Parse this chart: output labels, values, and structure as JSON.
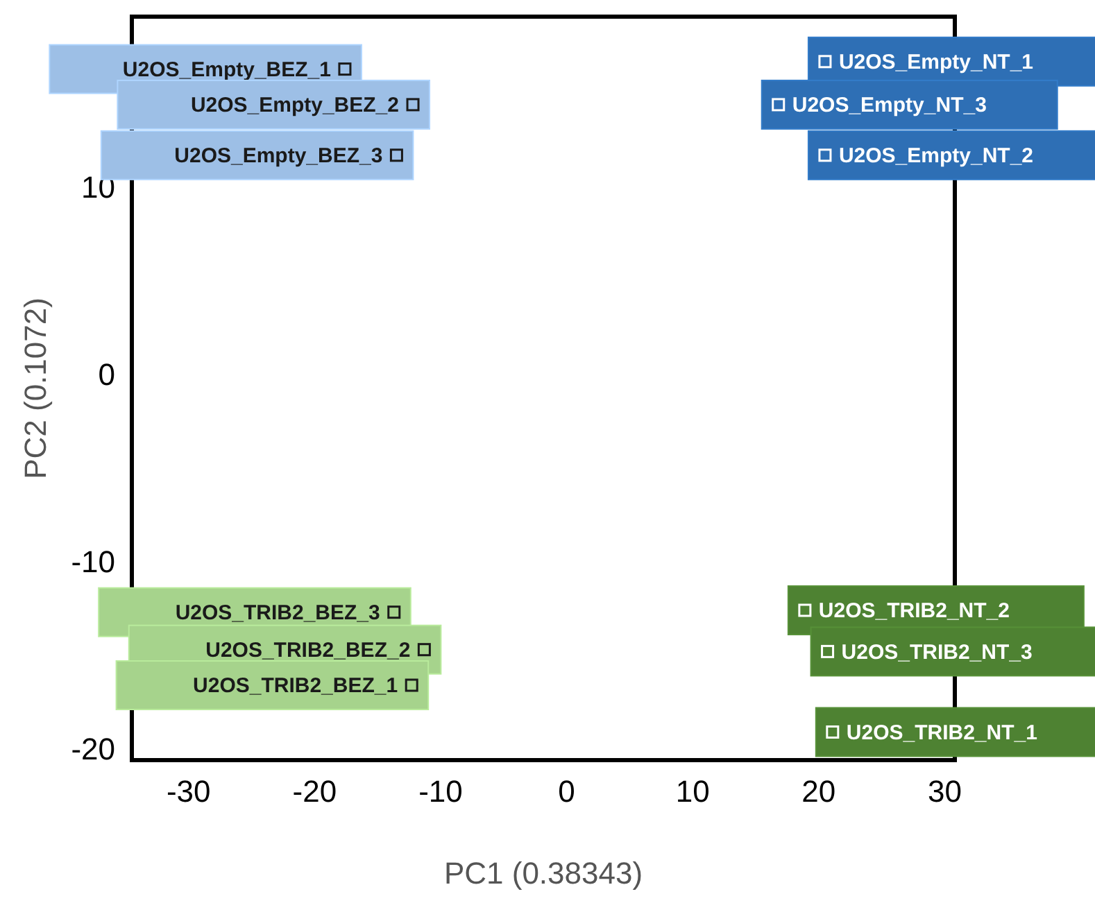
{
  "chart_data": {
    "type": "scatter",
    "xlabel": "PC1 (0.38343)",
    "ylabel": "PC2 (0.1072)",
    "xlim": [
      -34.5,
      30.8
    ],
    "ylim": [
      -20.6,
      19.1
    ],
    "xticks": [
      -30,
      -20,
      -10,
      0,
      10,
      20,
      30
    ],
    "yticks": [
      -20,
      -10,
      0,
      10
    ],
    "grid": false,
    "marker": "square",
    "series": [
      {
        "color": "#9dbfe6",
        "x": [
          -17.6,
          -12.2,
          -13.5
        ],
        "values": [
          16.3,
          14.4,
          11.7
        ],
        "value_labels": [
          "U2OS_Empty_BEZ_1",
          "U2OS_Empty_BEZ_2",
          "U2OS_Empty_BEZ_3"
        ]
      },
      {
        "color": "#2e6fb5",
        "x": [
          20.5,
          16.8,
          20.5
        ],
        "values": [
          16.7,
          14.4,
          11.7
        ],
        "value_labels": [
          "U2OS_Empty_NT_1",
          "U2OS_Empty_NT_3",
          "U2OS_Empty_NT_2"
        ]
      },
      {
        "color": "#a6d38c",
        "x": [
          -13.7,
          -11.3,
          -12.3
        ],
        "values": [
          -12.7,
          -14.7,
          -16.6
        ],
        "value_labels": [
          "U2OS_TRIB2_BEZ_3",
          "U2OS_TRIB2_BEZ_2",
          "U2OS_TRIB2_BEZ_1"
        ]
      },
      {
        "color": "#4e8232",
        "x": [
          18.9,
          20.7,
          21.1
        ],
        "values": [
          -12.6,
          -14.8,
          -19.1
        ],
        "value_labels": [
          "U2OS_TRIB2_NT_2",
          "U2OS_TRIB2_NT_3",
          "U2OS_TRIB2_NT_1"
        ]
      }
    ]
  }
}
